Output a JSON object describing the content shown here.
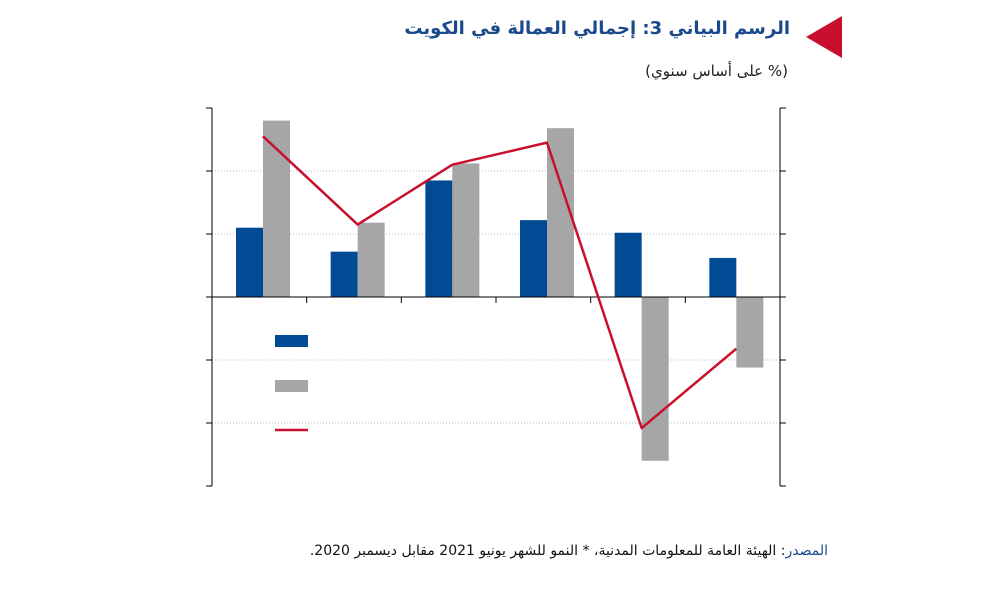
{
  "header": {
    "title": "الرسم البياني 3: إجمالي العمالة في الكويت",
    "subtitle": "(% على أساس سنوي)"
  },
  "footer": {
    "source_label": "المصدر",
    "source_text": ": الهيئة العامة للمعلومات المدنية، * النمو للشهر يونيو 2021 مقابل ديسمبر 2020."
  },
  "colors": {
    "series_blue": "#004b93",
    "series_gray": "#a6a6a6",
    "line_red": "#c8102e",
    "accent_red": "#c8102e",
    "title_blue": "#1a4a8c"
  },
  "chart_data": {
    "type": "bar",
    "categories": [
      "",
      "",
      "",
      "",
      "",
      ""
    ],
    "ylim": [
      -3,
      3
    ],
    "grid": true,
    "legend_placement": "left",
    "series": [
      {
        "type": "bar",
        "color": "#004b93",
        "values": [
          1.1,
          0.72,
          1.85,
          1.22,
          1.02,
          0.62
        ]
      },
      {
        "type": "bar",
        "color": "#a6a6a6",
        "values": [
          2.8,
          1.18,
          2.12,
          2.68,
          -2.6,
          -1.12
        ]
      },
      {
        "type": "line",
        "color": "#c8102e",
        "values": [
          2.55,
          1.15,
          2.1,
          2.45,
          -2.08,
          -0.82
        ]
      }
    ]
  }
}
